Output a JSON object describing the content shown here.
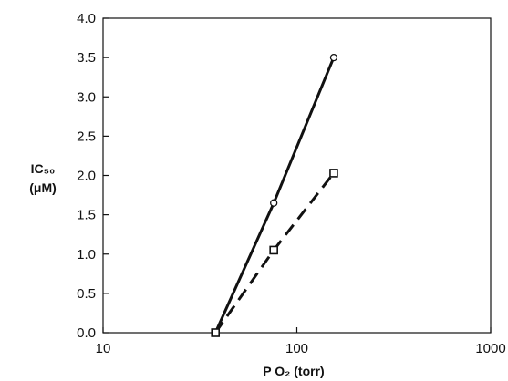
{
  "chart_data": {
    "type": "line",
    "xlabel": "P O₂ (torr)",
    "ylabel": [
      "IC₅₀",
      "(μM)"
    ],
    "x_scale": "log",
    "xlim": [
      10,
      1000
    ],
    "ylim": [
      0.0,
      4.0
    ],
    "x_ticks": [
      "10",
      "100",
      "1000"
    ],
    "y_ticks": [
      "0.0",
      "0.5",
      "1.0",
      "1.5",
      "2.0",
      "2.5",
      "3.0",
      "3.5",
      "4.0"
    ],
    "grid": false,
    "series": [
      {
        "marker": "circle",
        "line_style": "solid",
        "points": [
          {
            "x": 38,
            "y": 0.0
          },
          {
            "x": 76,
            "y": 1.65
          },
          {
            "x": 155,
            "y": 3.5
          }
        ]
      },
      {
        "marker": "square",
        "line_style": "dashed",
        "points": [
          {
            "x": 38,
            "y": 0.0
          },
          {
            "x": 76,
            "y": 1.05
          },
          {
            "x": 155,
            "y": 2.03
          }
        ]
      }
    ]
  }
}
